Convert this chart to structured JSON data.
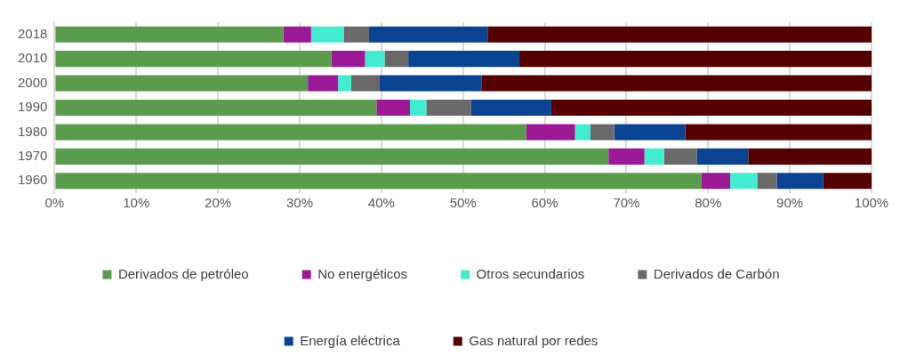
{
  "chart_data": {
    "type": "bar",
    "orientation": "horizontal",
    "stacked": true,
    "categories": [
      "2018",
      "2010",
      "2000",
      "1990",
      "1980",
      "1970",
      "1960"
    ],
    "series": [
      {
        "name": "Derivados de petróleo",
        "color": "#5b9b4d",
        "values": [
          28.0,
          33.9,
          31.0,
          39.4,
          57.7,
          67.8,
          79.2
        ]
      },
      {
        "name": "No energéticos",
        "color": "#9b1994",
        "values": [
          3.4,
          4.1,
          3.7,
          4.1,
          6.0,
          4.4,
          3.5
        ]
      },
      {
        "name": "Otros secundarios",
        "color": "#43ebd0",
        "values": [
          4.0,
          2.4,
          1.6,
          2.0,
          1.9,
          2.4,
          3.3
        ]
      },
      {
        "name": "Derivados de Carbón",
        "color": "#696969",
        "values": [
          3.1,
          2.9,
          3.5,
          5.5,
          2.9,
          4.0,
          2.4
        ]
      },
      {
        "name": "Energía eléctrica",
        "color": "#0a4391",
        "values": [
          14.5,
          13.6,
          12.5,
          9.8,
          8.7,
          6.3,
          5.7
        ]
      },
      {
        "name": "Gas natural por redes",
        "color": "#550000",
        "values": [
          47.0,
          43.1,
          47.7,
          39.2,
          22.8,
          15.1,
          5.9
        ]
      }
    ],
    "xlim": [
      0,
      100
    ],
    "xticks": [
      {
        "value": 0,
        "label": "0%"
      },
      {
        "value": 10,
        "label": "10%"
      },
      {
        "value": 20,
        "label": "20%"
      },
      {
        "value": 30,
        "label": "30%"
      },
      {
        "value": 40,
        "label": "40%"
      },
      {
        "value": 50,
        "label": "50%"
      },
      {
        "value": 60,
        "label": "60%"
      },
      {
        "value": 70,
        "label": "70%"
      },
      {
        "value": 80,
        "label": "80%"
      },
      {
        "value": 90,
        "label": "90%"
      },
      {
        "value": 100,
        "label": "100%"
      }
    ],
    "grid": "x",
    "legend": "bottom"
  }
}
